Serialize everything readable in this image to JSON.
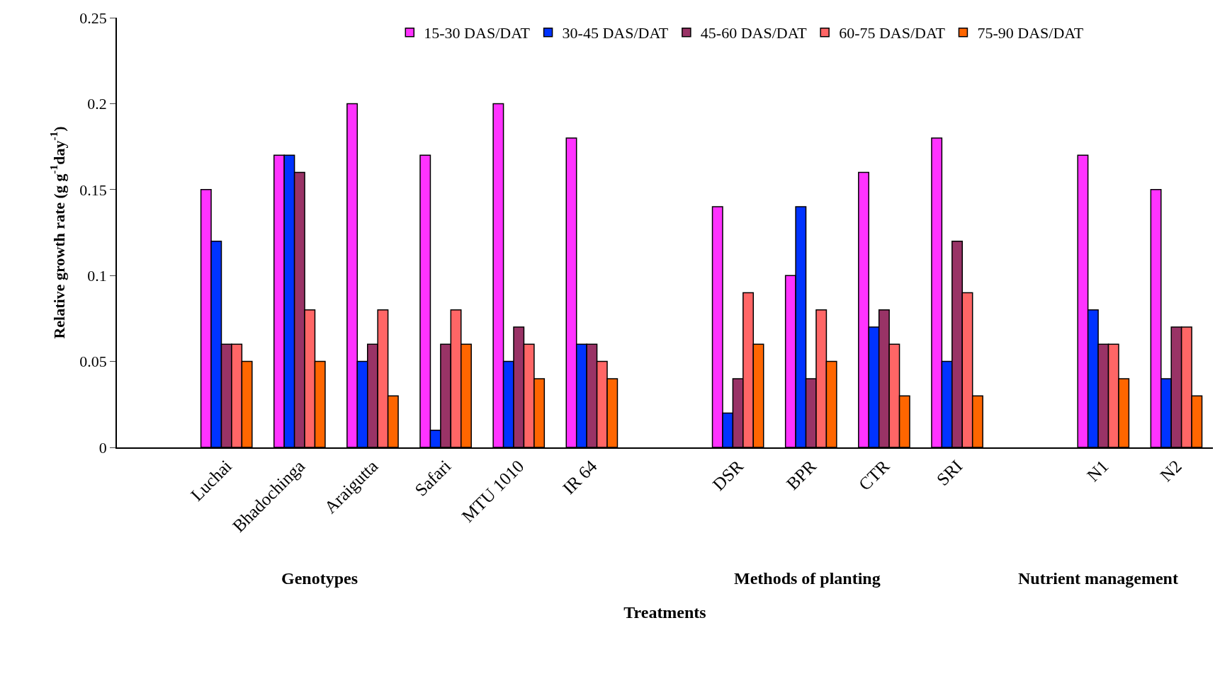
{
  "chart_data": {
    "type": "bar",
    "categories": [
      null,
      "Luchai",
      "Bhadochinga",
      "Araigutta",
      "Safari",
      "MTU 1010",
      "IR 64",
      null,
      "DSR",
      "BPR",
      "CTR",
      "SRI",
      null,
      "N1",
      "N2"
    ],
    "series": [
      {
        "name": "15-30 DAS/DAT",
        "color": "#ff33ff",
        "values": [
          null,
          0.15,
          0.17,
          0.2,
          0.17,
          0.2,
          0.18,
          null,
          0.14,
          0.1,
          0.16,
          0.18,
          null,
          0.17,
          0.15
        ]
      },
      {
        "name": "30-45 DAS/DAT",
        "color": "#0033ff",
        "values": [
          null,
          0.12,
          0.17,
          0.05,
          0.01,
          0.05,
          0.06,
          null,
          0.02,
          0.14,
          0.07,
          0.05,
          null,
          0.08,
          0.04
        ]
      },
      {
        "name": "45-60 DAS/DAT",
        "color": "#993366",
        "values": [
          null,
          0.06,
          0.16,
          0.06,
          0.06,
          0.07,
          0.06,
          null,
          0.04,
          0.04,
          0.08,
          0.12,
          null,
          0.06,
          0.07
        ]
      },
      {
        "name": "60-75 DAS/DAT",
        "color": "#ff6666",
        "values": [
          null,
          0.06,
          0.08,
          0.08,
          0.08,
          0.06,
          0.05,
          null,
          0.09,
          0.08,
          0.06,
          0.09,
          null,
          0.06,
          0.07
        ]
      },
      {
        "name": "75-90 DAS/DAT",
        "color": "#ff6600",
        "values": [
          null,
          0.05,
          0.05,
          0.03,
          0.06,
          0.04,
          0.04,
          null,
          0.06,
          0.05,
          0.03,
          0.03,
          null,
          0.04,
          0.03
        ]
      }
    ],
    "xlabel": "Treatments",
    "ylabel": "Relative growth rate (g g$^{-1}$day$^{-1}$)",
    "ylim": [
      0,
      0.25
    ],
    "yticks": [
      0,
      0.05,
      0.1,
      0.15,
      0.2,
      0.25
    ],
    "annotations": [
      "Genotypes",
      "Methods of planting",
      "Nutrient management"
    ],
    "legend": "top"
  }
}
